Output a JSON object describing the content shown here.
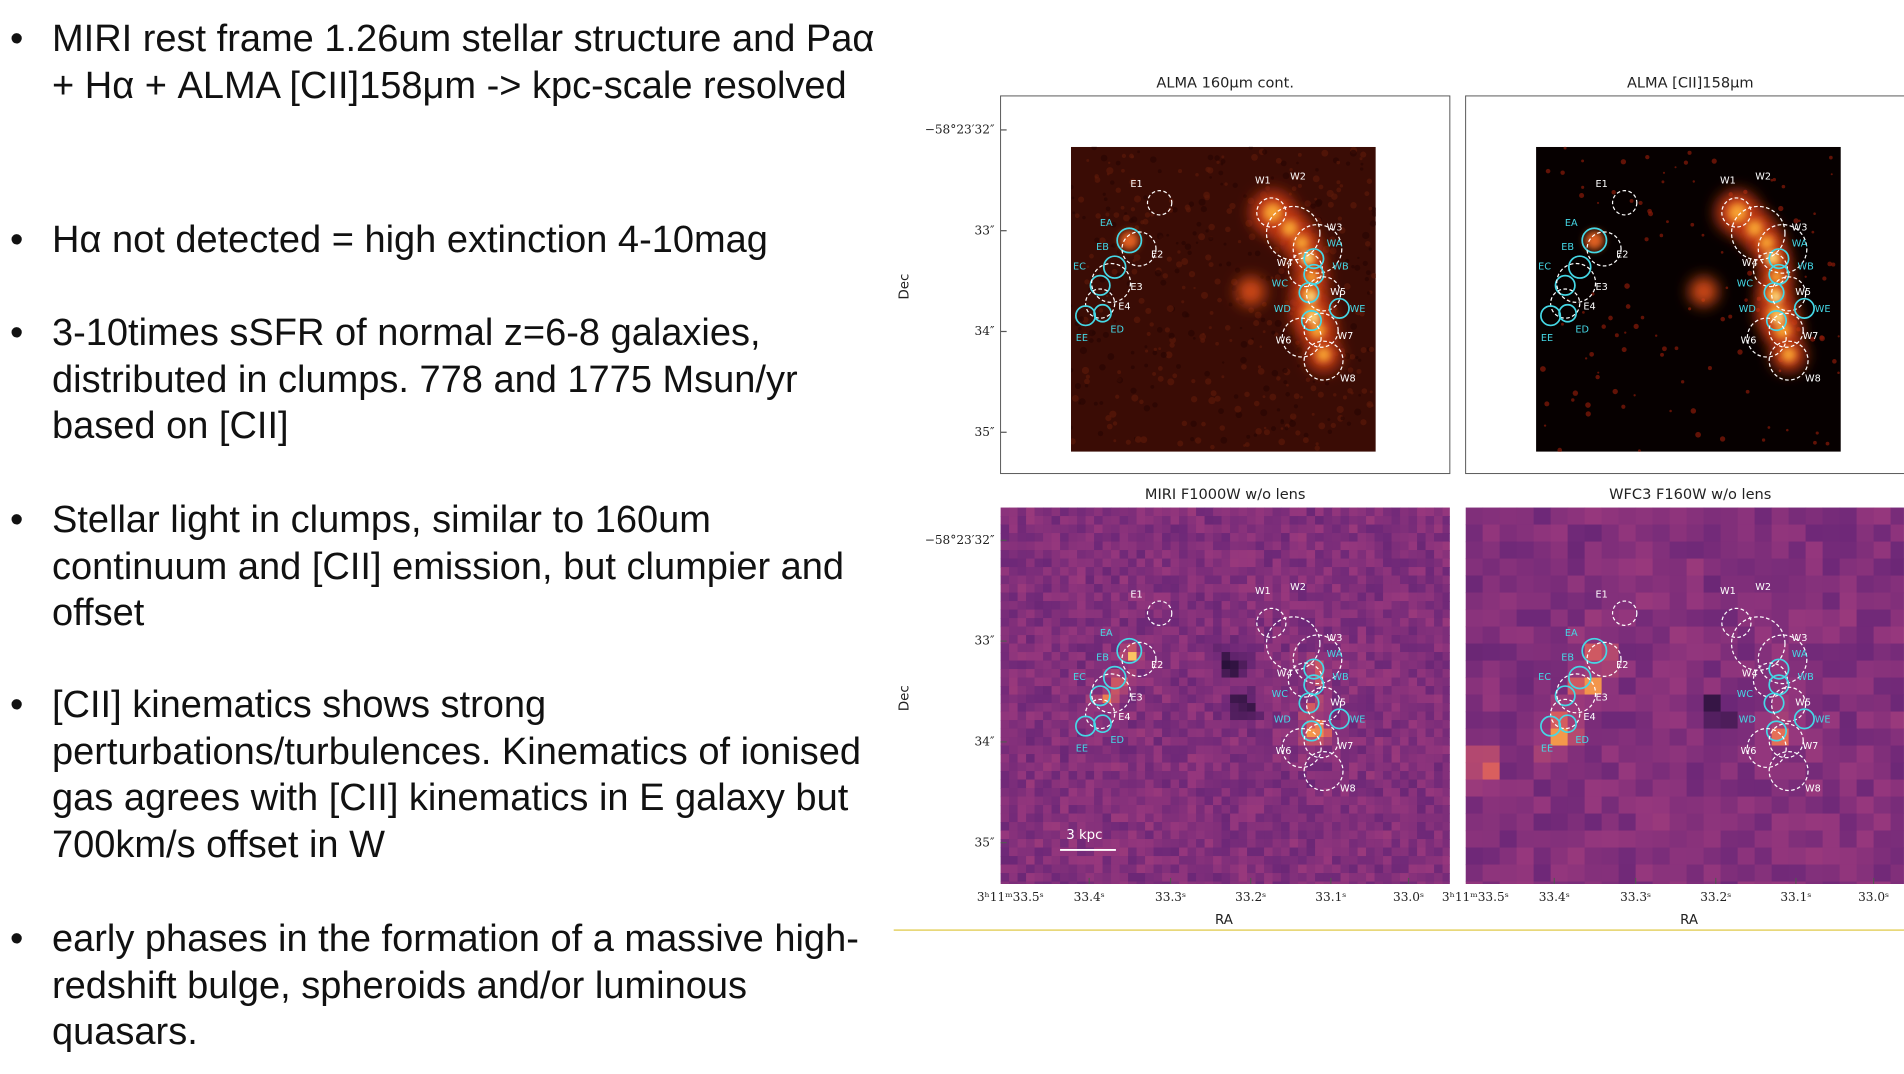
{
  "bullets": [
    "MIRI rest frame 1.26um stellar structure and Paα + Hα + ALMA [CII]158μm -> kpc-scale resolved",
    "Hα not detected = high extinction 4-10mag",
    "3-10times sSFR of normal z=6-8 galaxies, distributed in clumps. 778 and 1775 Msun/yr based on [CII]",
    "Stellar light in clumps, similar to 160um continuum and [CII] emission, but clumpier and offset",
    "[CII] kinematics shows strong perturbations/turbulences. Kinematics of ionised gas agrees with [CII] kinematics in E galaxy but 700km/s offset in W",
    "early phases in the formation of a massive high-redshift bulge, spheroids and/or luminous quasars."
  ],
  "figure": {
    "panels": [
      {
        "title": "ALMA 160μm cont."
      },
      {
        "title": "ALMA [CII]158μm"
      },
      {
        "title": "MIRI F1000W w/o lens"
      },
      {
        "title": "WFC3 F160W w/o lens"
      }
    ],
    "dec_label": "Dec",
    "ra_label": "RA",
    "dec_ticks": [
      "−58°23′32″",
      "33″",
      "34″",
      "35″"
    ],
    "ra_ticks": [
      "3ʰ11ᵐ33.5ˢ",
      "33.4ˢ",
      "33.3ˢ",
      "33.2ˢ",
      "33.1ˢ",
      "33.0ˢ"
    ],
    "clump_labels": [
      "E1",
      "W1",
      "W2",
      "EA",
      "EB",
      "E2",
      "EC",
      "E3",
      "E4",
      "ED",
      "EE",
      "W3",
      "WA",
      "W4",
      "WB",
      "WC",
      "W5",
      "WE",
      "WD",
      "W6",
      "W7",
      "W8"
    ],
    "scale_bar": "3 kpc"
  }
}
